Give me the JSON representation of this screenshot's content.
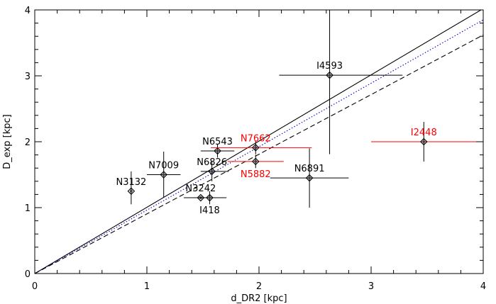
{
  "chart_data": {
    "type": "scatter",
    "xlabel": "d_DR2 [kpc]",
    "ylabel": "D_exp [kpc]",
    "xlim": [
      0,
      4
    ],
    "ylim": [
      0,
      4
    ],
    "x_ticks": [
      "0",
      "1",
      "2",
      "3",
      "4"
    ],
    "y_ticks": [
      "0",
      "1",
      "2",
      "3",
      "4"
    ],
    "grid": false,
    "points": [
      {
        "label": "N3132",
        "x": 0.86,
        "y": 1.25,
        "xerr": [
          0.0,
          0.0
        ],
        "yerr": [
          0.2,
          0.3
        ],
        "color": "#000000",
        "label_pos": "above"
      },
      {
        "label": "N7009",
        "x": 1.15,
        "y": 1.5,
        "xerr": [
          0.15,
          0.15
        ],
        "yerr": [
          0.35,
          0.35
        ],
        "color": "#000000",
        "label_pos": "above"
      },
      {
        "label": "N3242",
        "x": 1.48,
        "y": 1.15,
        "xerr": [
          0.15,
          0.15
        ],
        "yerr": [
          0.0,
          0.0
        ],
        "color": "#000000",
        "label_pos": "above"
      },
      {
        "label": "I418",
        "x": 1.56,
        "y": 1.15,
        "xerr": [
          0.15,
          0.15
        ],
        "yerr": [
          0.1,
          0.1
        ],
        "color": "#000000",
        "label_pos": "below"
      },
      {
        "label": "N6826",
        "x": 1.58,
        "y": 1.55,
        "xerr": [
          0.1,
          0.15
        ],
        "yerr": [
          0.15,
          0.15
        ],
        "color": "#000000",
        "label_pos": "above"
      },
      {
        "label": "N6543",
        "x": 1.63,
        "y": 1.86,
        "xerr": [
          0.15,
          0.15
        ],
        "yerr": [
          0.1,
          0.1
        ],
        "color": "#000000",
        "label_pos": "above"
      },
      {
        "label": "N7662",
        "x": 1.97,
        "y": 1.91,
        "xerr": [
          0.4,
          0.5
        ],
        "yerr": [
          0.1,
          0.1
        ],
        "color": "#ff0000",
        "label_pos": "above"
      },
      {
        "label": "N5882",
        "x": 1.97,
        "y": 1.7,
        "xerr": [
          0.25,
          0.25
        ],
        "yerr": [
          0.1,
          0.1
        ],
        "color": "#ff0000",
        "label_pos": "below"
      },
      {
        "label": "N6891",
        "x": 2.45,
        "y": 1.45,
        "xerr": [
          0.35,
          0.35
        ],
        "yerr": [
          0.45,
          0.45
        ],
        "color": "#000000",
        "label_pos": "above"
      },
      {
        "label": "I4593",
        "x": 2.63,
        "y": 3.01,
        "xerr": [
          0.45,
          0.65
        ],
        "yerr": [
          1.2,
          1.1
        ],
        "color": "#000000",
        "label_pos": "above"
      },
      {
        "label": "I2448",
        "x": 3.47,
        "y": 2.0,
        "xerr": [
          0.47,
          0.6
        ],
        "yerr": [
          0.3,
          0.3
        ],
        "color": "#ff0000",
        "label_pos": "above"
      }
    ],
    "lines": [
      {
        "style": "solid",
        "color": "#000000",
        "x": [
          0,
          4
        ],
        "y": [
          0,
          4.02
        ]
      },
      {
        "style": "dotted",
        "color": "#0000cc",
        "x": [
          0,
          4
        ],
        "y": [
          0,
          3.85
        ]
      },
      {
        "style": "dashed",
        "color": "#000000",
        "x": [
          0,
          4
        ],
        "y": [
          0,
          3.62
        ]
      }
    ]
  }
}
